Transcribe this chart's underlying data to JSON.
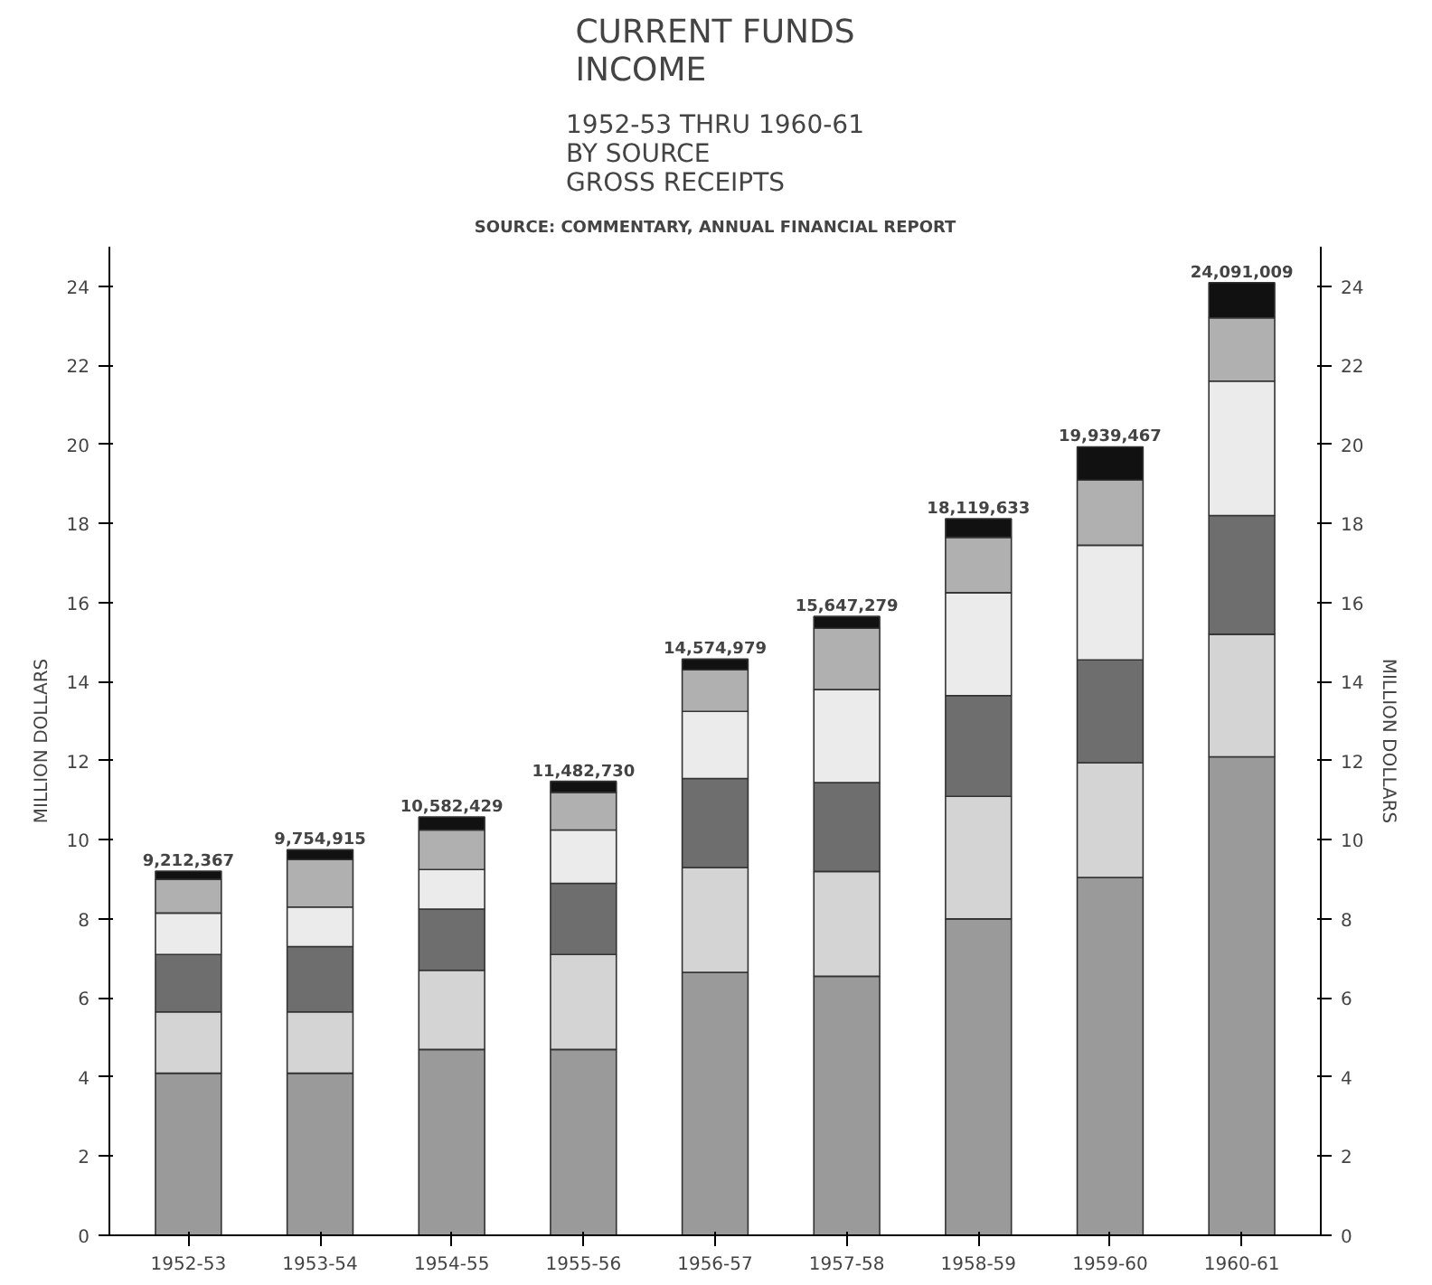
{
  "chart_data": {
    "type": "bar",
    "stacked": true,
    "title": "CURRENT FUNDS\nINCOME",
    "subtitle": "1952-53 THRU 1960-61\nBY SOURCE\nGROSS RECEIPTS",
    "annotations": [
      "SOURCE: COMMENTARY, ANNUAL FINANCIAL REPORT",
      {
        "text": "9,212,367",
        "x": "1952-53",
        "y": 9.212367
      },
      {
        "text": "9,754,915",
        "x": "1953-54",
        "y": 9.754915
      },
      {
        "text": "10,582,429",
        "x": "1954-55",
        "y": 10.582429
      },
      {
        "text": "11,482,730",
        "x": "1955-56",
        "y": 11.48273
      },
      {
        "text": "14,574,979",
        "x": "1956-57",
        "y": 14.574979
      },
      {
        "text": "15,647,279",
        "x": "1957-58",
        "y": 15.647279
      },
      {
        "text": "18,119,633",
        "x": "1958-59",
        "y": 18.119633
      },
      {
        "text": "19,939,467",
        "x": "1959-60",
        "y": 19.939467
      },
      {
        "text": "24,091,009",
        "x": "1960-61",
        "y": 24.091009
      }
    ],
    "ylabel": "MILLION DOLLARS",
    "y2label": "MILLION DOLLARS",
    "categories": [
      "1952-53",
      "1953-54",
      "1954-55",
      "1955-56",
      "1956-57",
      "1957-58",
      "1958-59",
      "1959-60",
      "1960-61"
    ],
    "series": [
      {
        "color": "#9a9a9a",
        "values": [
          4.1,
          4.1,
          4.7,
          4.7,
          6.65,
          6.55,
          8.0,
          9.05,
          12.1
        ]
      },
      {
        "color": "#d4d4d4",
        "values": [
          1.55,
          1.55,
          2.0,
          2.4,
          2.65,
          2.65,
          3.1,
          2.9,
          3.1
        ]
      },
      {
        "color": "#6e6e6e",
        "values": [
          1.45,
          1.65,
          1.55,
          1.8,
          2.25,
          2.25,
          2.55,
          2.6,
          3.0
        ]
      },
      {
        "color": "#ebebeb",
        "values": [
          1.05,
          1.0,
          1.0,
          1.35,
          1.7,
          2.35,
          2.6,
          2.9,
          3.4
        ]
      },
      {
        "color": "#b0b0b0",
        "values": [
          0.85,
          1.2,
          1.0,
          0.95,
          1.05,
          1.55,
          1.4,
          1.65,
          1.6
        ]
      },
      {
        "color": "#111111",
        "values": [
          0.21,
          0.25,
          0.33,
          0.28,
          0.27,
          0.3,
          0.47,
          0.84,
          0.89
        ]
      }
    ],
    "ylim": [
      0,
      25
    ],
    "yticks": [
      0,
      2,
      4,
      6,
      8,
      10,
      12,
      14,
      16,
      18,
      20,
      22,
      24
    ],
    "y2lim": [
      0,
      25
    ],
    "y2ticks": [
      0,
      2,
      4,
      6,
      8,
      10,
      12,
      14,
      16,
      18,
      20,
      22,
      24
    ],
    "grid": false
  }
}
